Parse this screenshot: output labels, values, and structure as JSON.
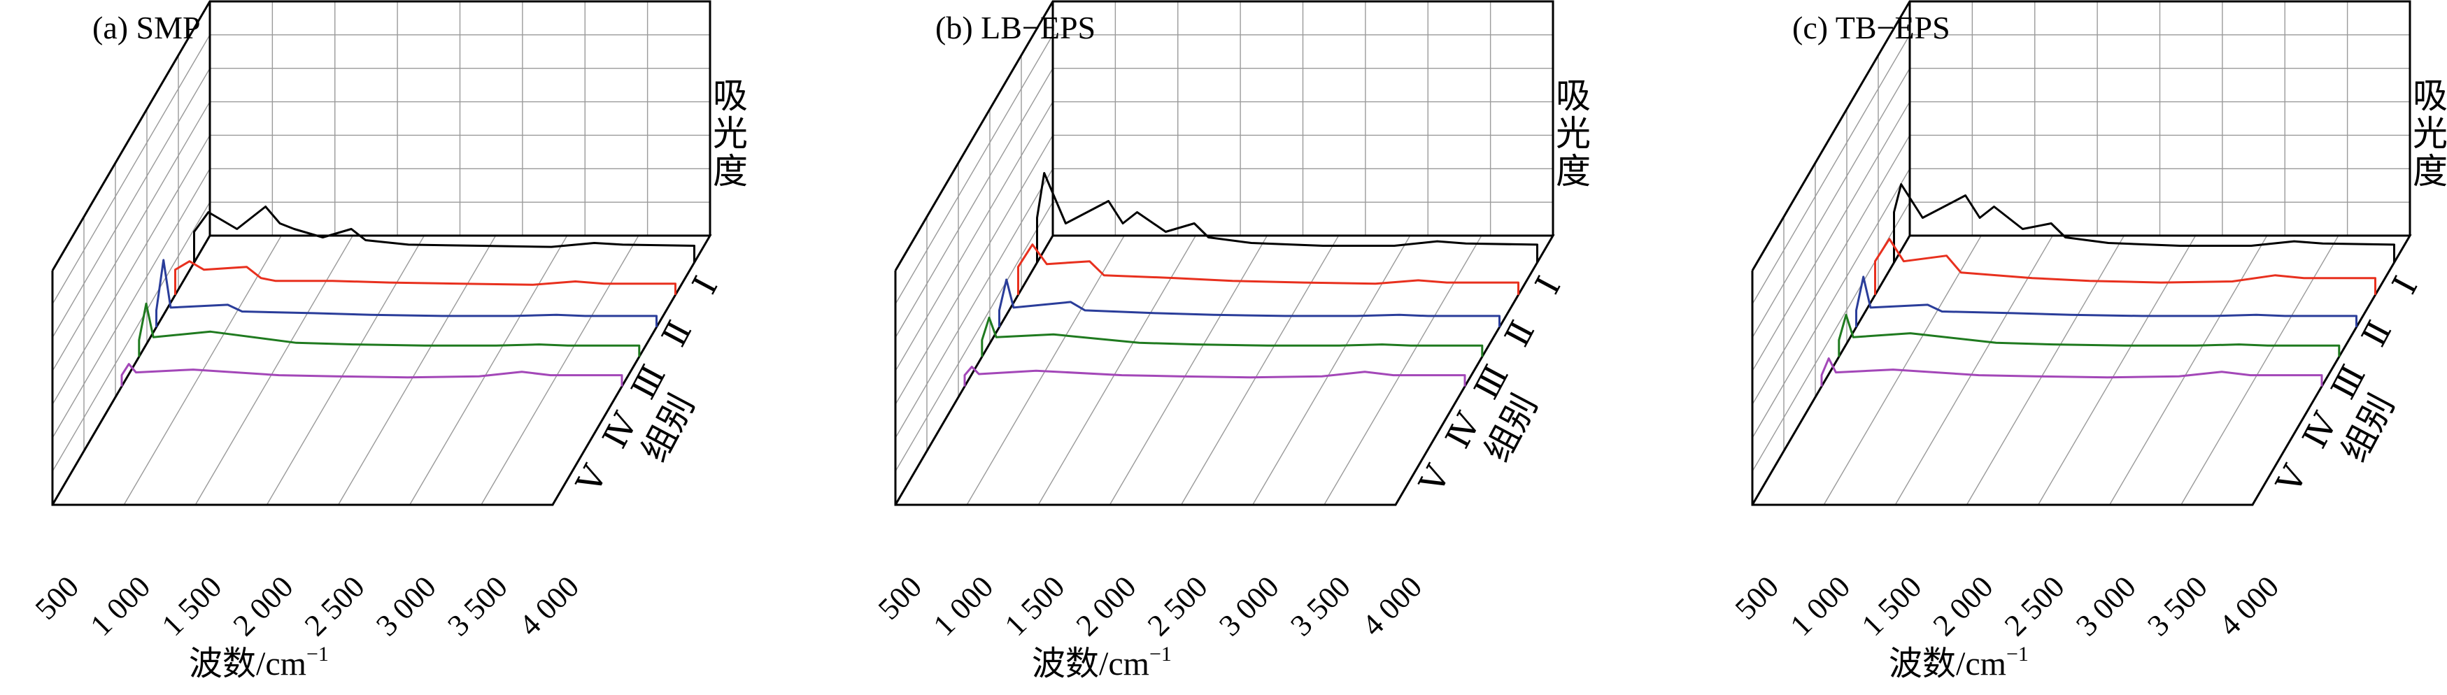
{
  "colors": {
    "I": "#000000",
    "II": "#e8301e",
    "III": "#2a3d9a",
    "IV": "#1f7a1f",
    "V": "#a347b8"
  },
  "chart_data": [
    {
      "type": "line",
      "title": "(a)  SMP",
      "xlabel": "波数/cm",
      "xlabel_sup": "−1",
      "zlabel": "吸光度",
      "ylabel": "组别",
      "x_ticks": [
        "500",
        "1 000",
        "1 500",
        "2 000",
        "2 500",
        "3 000",
        "3 500",
        "4 000"
      ],
      "xlim": [
        500,
        4000
      ],
      "group_labels": [
        "Ⅰ",
        "Ⅱ",
        "Ⅲ",
        "Ⅳ",
        "Ⅴ"
      ],
      "grid": true,
      "series": [
        {
          "name": "Ⅰ",
          "x": [
            500,
            600,
            800,
            1000,
            1100,
            1200,
            1400,
            1600,
            1700,
            2000,
            2500,
            3000,
            3300,
            3500,
            4000
          ],
          "y": [
            0.55,
            0.9,
            0.6,
            1.0,
            0.7,
            0.6,
            0.45,
            0.6,
            0.4,
            0.32,
            0.3,
            0.28,
            0.35,
            0.32,
            0.3
          ]
        },
        {
          "name": "Ⅱ",
          "x": [
            500,
            600,
            700,
            1000,
            1100,
            1200,
            1600,
            2000,
            2500,
            3000,
            3300,
            3500,
            4000
          ],
          "y": [
            0.45,
            0.6,
            0.45,
            0.5,
            0.3,
            0.25,
            0.25,
            0.22,
            0.2,
            0.18,
            0.24,
            0.2,
            0.2
          ]
        },
        {
          "name": "Ⅲ",
          "x": [
            500,
            550,
            600,
            1000,
            1100,
            1600,
            2000,
            2500,
            3000,
            3300,
            3500,
            4000
          ],
          "y": [
            0.3,
            1.2,
            0.35,
            0.4,
            0.28,
            0.25,
            0.22,
            0.2,
            0.2,
            0.22,
            0.2,
            0.2
          ]
        },
        {
          "name": "Ⅳ",
          "x": [
            500,
            550,
            600,
            1000,
            1600,
            2000,
            2500,
            3000,
            3300,
            3500,
            4000
          ],
          "y": [
            0.3,
            0.95,
            0.35,
            0.45,
            0.25,
            0.22,
            0.2,
            0.2,
            0.22,
            0.2,
            0.2
          ]
        },
        {
          "name": "Ⅴ",
          "x": [
            500,
            550,
            600,
            1000,
            1600,
            2000,
            2500,
            3000,
            3300,
            3500,
            4000
          ],
          "y": [
            0.2,
            0.4,
            0.25,
            0.3,
            0.2,
            0.18,
            0.16,
            0.18,
            0.26,
            0.2,
            0.2
          ]
        }
      ]
    },
    {
      "type": "line",
      "title": "(b)  LB−EPS",
      "xlabel": "波数/cm",
      "xlabel_sup": "−1",
      "zlabel": "吸光度",
      "ylabel": "组别",
      "x_ticks": [
        "500",
        "1 000",
        "1 500",
        "2 000",
        "2 500",
        "3 000",
        "3 500",
        "4 000"
      ],
      "xlim": [
        500,
        4000
      ],
      "group_labels": [
        "Ⅰ",
        "Ⅱ",
        "Ⅲ",
        "Ⅳ",
        "Ⅴ"
      ],
      "grid": true,
      "series": [
        {
          "name": "Ⅰ",
          "x": [
            500,
            550,
            700,
            1000,
            1100,
            1200,
            1400,
            1600,
            1700,
            2000,
            2500,
            3000,
            3300,
            3500,
            4000
          ],
          "y": [
            0.8,
            1.6,
            0.7,
            1.1,
            0.7,
            0.9,
            0.55,
            0.7,
            0.45,
            0.35,
            0.3,
            0.3,
            0.38,
            0.34,
            0.32
          ]
        },
        {
          "name": "Ⅱ",
          "x": [
            500,
            600,
            700,
            1000,
            1100,
            1600,
            2000,
            2500,
            3000,
            3300,
            3500,
            4000
          ],
          "y": [
            0.5,
            0.9,
            0.55,
            0.6,
            0.35,
            0.3,
            0.25,
            0.22,
            0.2,
            0.26,
            0.22,
            0.22
          ]
        },
        {
          "name": "Ⅲ",
          "x": [
            500,
            550,
            600,
            1000,
            1100,
            1600,
            2000,
            2500,
            3000,
            3300,
            3500,
            4000
          ],
          "y": [
            0.3,
            0.85,
            0.35,
            0.45,
            0.3,
            0.25,
            0.22,
            0.2,
            0.2,
            0.22,
            0.2,
            0.2
          ]
        },
        {
          "name": "Ⅳ",
          "x": [
            500,
            550,
            600,
            1000,
            1600,
            2000,
            2500,
            3000,
            3300,
            3500,
            4000
          ],
          "y": [
            0.3,
            0.7,
            0.35,
            0.4,
            0.25,
            0.22,
            0.2,
            0.2,
            0.22,
            0.2,
            0.2
          ]
        },
        {
          "name": "Ⅴ",
          "x": [
            500,
            550,
            600,
            1000,
            1600,
            2000,
            2500,
            3000,
            3300,
            3500,
            4000
          ],
          "y": [
            0.2,
            0.35,
            0.22,
            0.28,
            0.2,
            0.18,
            0.16,
            0.18,
            0.26,
            0.2,
            0.2
          ]
        }
      ]
    },
    {
      "type": "line",
      "title": "(c)  TB−EPS",
      "xlabel": "波数/cm",
      "xlabel_sup": "−1",
      "zlabel": "吸光度",
      "ylabel": "组别",
      "x_ticks": [
        "500",
        "1 000",
        "1 500",
        "2 000",
        "2 500",
        "3 000",
        "3 500",
        "4 000"
      ],
      "xlim": [
        500,
        4000
      ],
      "group_labels": [
        "Ⅰ",
        "Ⅱ",
        "Ⅲ",
        "Ⅳ",
        "Ⅴ"
      ],
      "grid": true,
      "series": [
        {
          "name": "Ⅰ",
          "x": [
            500,
            550,
            700,
            1000,
            1100,
            1200,
            1400,
            1600,
            1700,
            2000,
            2500,
            3000,
            3300,
            3500,
            4000
          ],
          "y": [
            0.9,
            1.4,
            0.8,
            1.2,
            0.8,
            1.0,
            0.6,
            0.7,
            0.45,
            0.35,
            0.3,
            0.3,
            0.38,
            0.34,
            0.32
          ]
        },
        {
          "name": "Ⅱ",
          "x": [
            500,
            600,
            700,
            1000,
            1100,
            1600,
            2000,
            2500,
            3000,
            3300,
            3500,
            4000
          ],
          "y": [
            0.6,
            1.0,
            0.6,
            0.7,
            0.4,
            0.3,
            0.25,
            0.22,
            0.24,
            0.35,
            0.3,
            0.3
          ]
        },
        {
          "name": "Ⅲ",
          "x": [
            500,
            550,
            600,
            1000,
            1100,
            1600,
            2000,
            2500,
            3000,
            3300,
            3500,
            4000
          ],
          "y": [
            0.3,
            0.9,
            0.35,
            0.4,
            0.28,
            0.25,
            0.22,
            0.2,
            0.2,
            0.22,
            0.2,
            0.2
          ]
        },
        {
          "name": "Ⅳ",
          "x": [
            500,
            550,
            600,
            1000,
            1600,
            2000,
            2500,
            3000,
            3300,
            3500,
            4000
          ],
          "y": [
            0.3,
            0.75,
            0.35,
            0.42,
            0.25,
            0.22,
            0.2,
            0.2,
            0.22,
            0.2,
            0.2
          ]
        },
        {
          "name": "Ⅴ",
          "x": [
            500,
            550,
            600,
            1000,
            1600,
            2000,
            2500,
            3000,
            3300,
            3500,
            4000
          ],
          "y": [
            0.2,
            0.5,
            0.25,
            0.3,
            0.2,
            0.18,
            0.16,
            0.18,
            0.26,
            0.2,
            0.2
          ]
        }
      ]
    }
  ]
}
